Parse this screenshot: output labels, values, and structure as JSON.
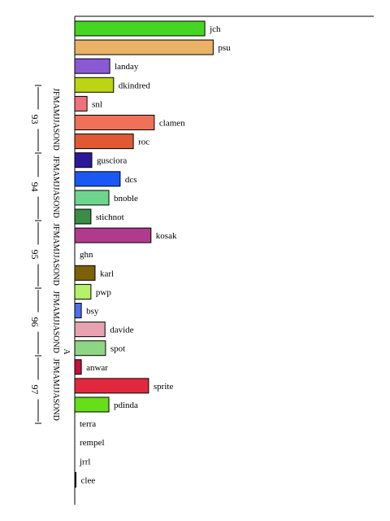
{
  "chart_data": {
    "type": "bar",
    "orientation": "horizontal",
    "title": "",
    "xlabel": "",
    "ylabel": "",
    "xlim": [
      0,
      100
    ],
    "grid": false,
    "legend": "none",
    "categories": [
      "jch",
      "psu",
      "landay",
      "dkindred",
      "snl",
      "clamen",
      "roc",
      "gusciora",
      "dcs",
      "bnoble",
      "stichnot",
      "kosak",
      "ghn",
      "karl",
      "pwp",
      "bsy",
      "davide",
      "spot",
      "anwar",
      "sprite",
      "pdinda",
      "terra",
      "rempel",
      "jrrl",
      "clee"
    ],
    "values": [
      43.5,
      46.3,
      11.7,
      13.0,
      4.1,
      26.6,
      19.6,
      5.7,
      15.2,
      11.4,
      5.4,
      25.5,
      0,
      6.8,
      5.4,
      2.2,
      10.1,
      10.3,
      2.2,
      24.7,
      11.4,
      0,
      0,
      0,
      0.4
    ],
    "colors": [
      "#44d620",
      "#eab264",
      "#8a5ad6",
      "#bcd413",
      "#f0717a",
      "#ef7158",
      "#df5a34",
      "#2b189a",
      "#1b57f3",
      "#6dd68c",
      "#3a8d44",
      "#b03a8e",
      "#ffffff",
      "#7b6209",
      "#b6f269",
      "#4a70ee",
      "#e6a2b0",
      "#8ed684",
      "#c5103a",
      "#e2283e",
      "#66de18",
      "#ffffff",
      "#ffffff",
      "#ffffff",
      "#1a2580"
    ]
  },
  "timeline": {
    "months": "JFMAMJJASOND",
    "years": [
      "93",
      "94",
      "95",
      "96",
      "97"
    ],
    "marker": "A"
  }
}
